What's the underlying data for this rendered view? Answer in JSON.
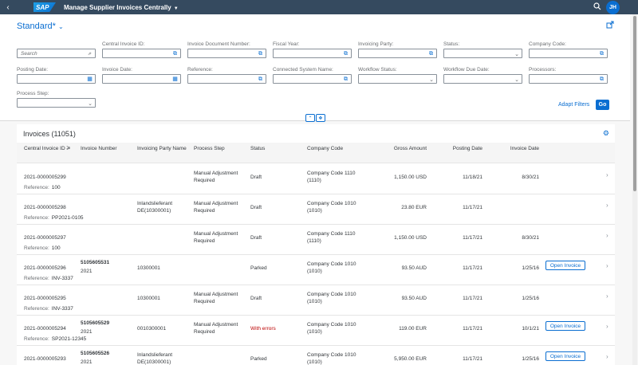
{
  "shell": {
    "back_icon": "chevron-left-icon",
    "logo": "SAP",
    "app_title": "Manage Supplier Invoices Centrally",
    "avatar": "JH"
  },
  "header": {
    "variant": "Standard*",
    "filters": [
      {
        "label": "",
        "value": "Search",
        "kind": "search"
      },
      {
        "label": "Central Invoice ID:",
        "value": "",
        "kind": "valuehelp"
      },
      {
        "label": "Invoice Document Number:",
        "value": "",
        "kind": "valuehelp"
      },
      {
        "label": "Fiscal Year:",
        "value": "",
        "kind": "valuehelp"
      },
      {
        "label": "Invoicing Party:",
        "value": "",
        "kind": "valuehelp"
      },
      {
        "label": "Status:",
        "value": "",
        "kind": "dropdown"
      },
      {
        "label": "Company Code:",
        "value": "",
        "kind": "valuehelp"
      },
      {
        "label": "Posting Date:",
        "value": "",
        "kind": "date"
      },
      {
        "label": "Invoice Date:",
        "value": "",
        "kind": "date"
      },
      {
        "label": "Reference:",
        "value": "",
        "kind": "valuehelp"
      },
      {
        "label": "Connected System Name:",
        "value": "",
        "kind": "valuehelp"
      },
      {
        "label": "Workflow Status:",
        "value": "",
        "kind": "dropdown"
      },
      {
        "label": "Workflow Due Date:",
        "value": "",
        "kind": "dropdown"
      },
      {
        "label": "Processors:",
        "value": "",
        "kind": "valuehelp"
      },
      {
        "label": "Process Step:",
        "value": "",
        "kind": "dropdown"
      }
    ],
    "adapt_filters": "Adapt Filters",
    "go": "Go"
  },
  "table": {
    "title": "Invoices (11051)",
    "columns": [
      "Central Invoice ID",
      "Invoice Number",
      "Invoicing Party Name",
      "Process Step",
      "Status",
      "Company Code",
      "Gross Amount",
      "Posting Date",
      "Invoice Date"
    ],
    "reference_label": "Reference:",
    "open_label": "Open Invoice",
    "rows": [
      {
        "id": "2021-0000005299",
        "inv_num": "",
        "inv_year": "",
        "party": "",
        "step": "Manual Adjustment Required",
        "status": "Draft",
        "status_error": false,
        "company": "Company Code 1110 (1110)",
        "amount": "1,150.00 USD",
        "posting": "11/18/21",
        "invdate": "8/30/21",
        "open": false,
        "ref": "100"
      },
      {
        "id": "2021-0000005298",
        "inv_num": "",
        "inv_year": "",
        "party": "Inlandslieferant DE(10300001)",
        "step": "Manual Adjustment Required",
        "status": "Draft",
        "status_error": false,
        "company": "Company Code 1010 (1010)",
        "amount": "23.80 EUR",
        "posting": "11/17/21",
        "invdate": "",
        "open": false,
        "ref": "PP2021-0105"
      },
      {
        "id": "2021-0000005297",
        "inv_num": "",
        "inv_year": "",
        "party": "",
        "step": "Manual Adjustment Required",
        "status": "Draft",
        "status_error": false,
        "company": "Company Code 1110 (1110)",
        "amount": "1,150.00 USD",
        "posting": "11/17/21",
        "invdate": "8/30/21",
        "open": false,
        "ref": "100"
      },
      {
        "id": "2021-0000005296",
        "inv_num": "5105605531",
        "inv_year": "2021",
        "party": "10300001",
        "step": "",
        "status": "Parked",
        "status_error": false,
        "company": "Company Code 1010 (1010)",
        "amount": "93.50 AUD",
        "posting": "11/17/21",
        "invdate": "1/25/16",
        "open": true,
        "ref": "INV-3337"
      },
      {
        "id": "2021-0000005295",
        "inv_num": "",
        "inv_year": "",
        "party": "10300001",
        "step": "Manual Adjustment Required",
        "status": "Draft",
        "status_error": false,
        "company": "Company Code 1010 (1010)",
        "amount": "93.50 AUD",
        "posting": "11/17/21",
        "invdate": "1/25/16",
        "open": false,
        "ref": "INV-3337"
      },
      {
        "id": "2021-0000005294",
        "inv_num": "5105605529",
        "inv_year": "2021",
        "party": "0010300001",
        "step": "Manual Adjustment Required",
        "status": "With errors",
        "status_error": true,
        "company": "Company Code 1010 (1010)",
        "amount": "119.00 EUR",
        "posting": "11/17/21",
        "invdate": "10/1/21",
        "open": true,
        "ref": "SP2021-12345"
      },
      {
        "id": "2021-0000005293",
        "inv_num": "5105605526",
        "inv_year": "2021",
        "party": "Inlandslieferant DE(10300001)",
        "step": "",
        "status": "Parked",
        "status_error": false,
        "company": "Company Code 1010 (1010)",
        "amount": "5,950.00 EUR",
        "posting": "11/17/21",
        "invdate": "1/25/16",
        "open": true,
        "ref": ""
      }
    ]
  },
  "colors": {
    "shell": "#354a5f",
    "accent": "#0a6ed1",
    "error": "#bb0000"
  }
}
